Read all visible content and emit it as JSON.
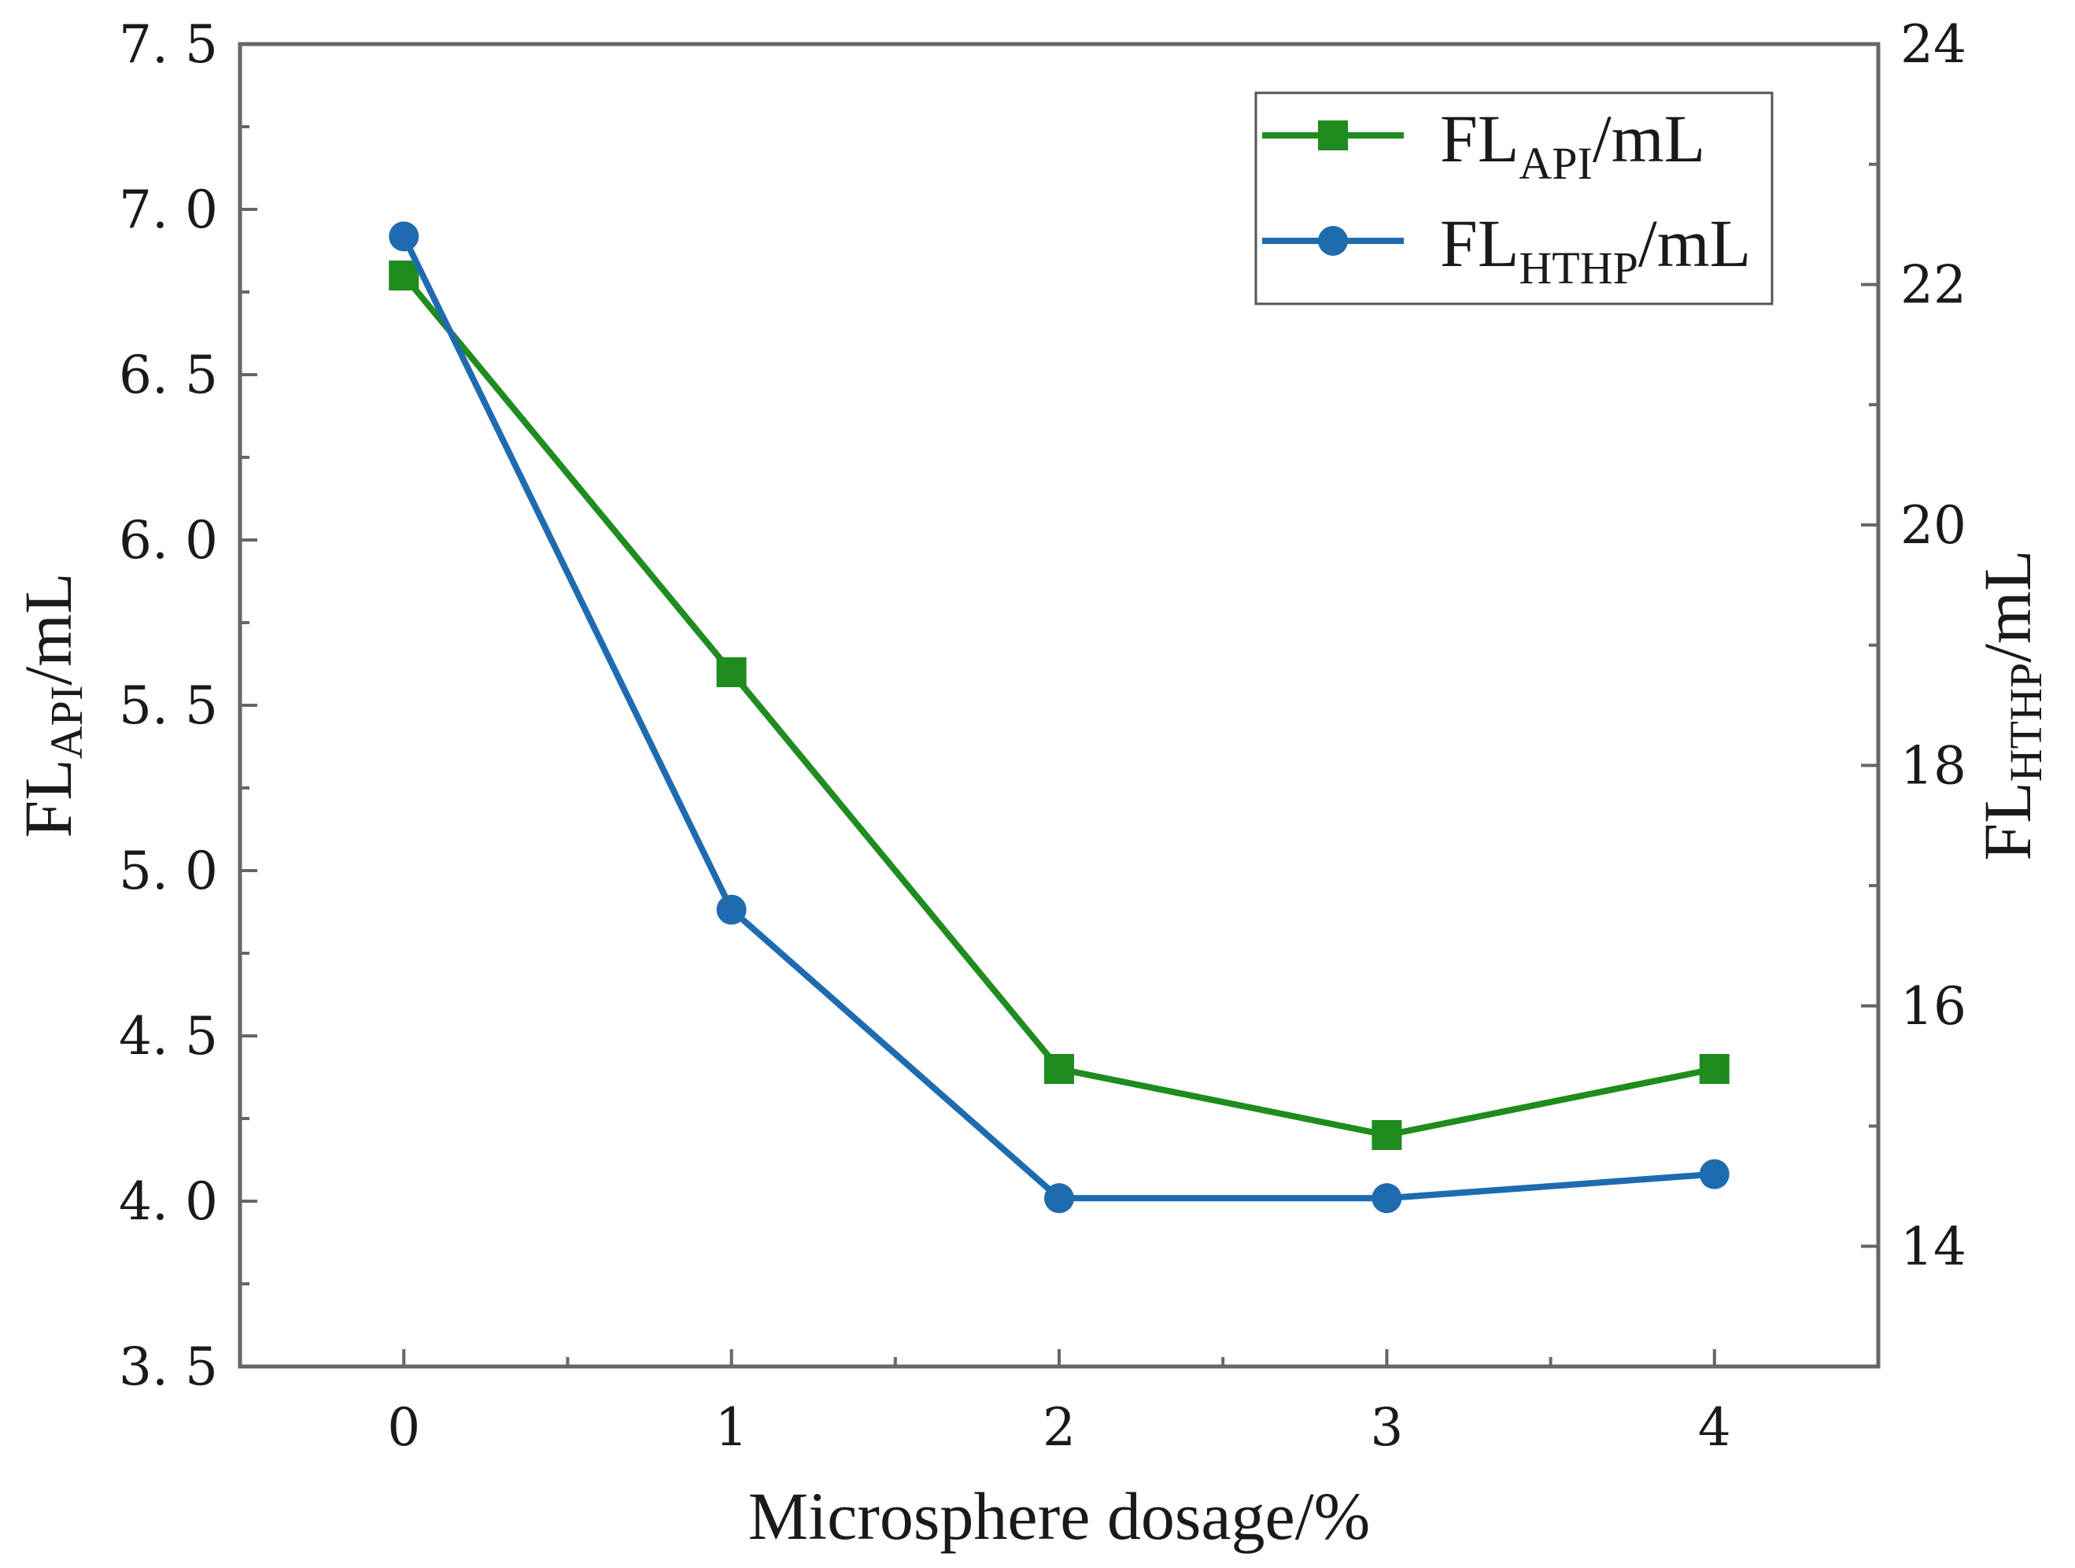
{
  "chart_data": {
    "type": "line",
    "x": [
      0,
      1,
      2,
      3,
      4
    ],
    "xlabel": "Microsphere dosage/%",
    "xlim": [
      -0.5,
      4.5
    ],
    "x_ticks": [
      "0",
      "1",
      "2",
      "3",
      "4"
    ],
    "y_left": {
      "label_main": "FL",
      "label_sub": "API",
      "label_unit": "/mL",
      "ylim": [
        3.5,
        7.5
      ],
      "ticks": [
        "3. 5",
        "4. 0",
        "4. 5",
        "5. 0",
        "5. 5",
        "6. 0",
        "6. 5",
        "7. 0",
        "7. 5"
      ],
      "tick_values": [
        3.5,
        4.0,
        4.5,
        5.0,
        5.5,
        6.0,
        6.5,
        7.0,
        7.5
      ]
    },
    "y_right": {
      "label_main": "FL",
      "label_sub": "HTHP",
      "label_unit": "/mL",
      "ylim": [
        13,
        24
      ],
      "ticks": [
        "14",
        "16",
        "18",
        "20",
        "22",
        "24"
      ],
      "tick_values": [
        14,
        16,
        18,
        20,
        22,
        24
      ]
    },
    "series": [
      {
        "name": "FL_API/mL",
        "legend_main": "FL",
        "legend_sub": "API",
        "legend_unit": "/mL",
        "axis": "left",
        "marker": "square",
        "color": "#1e8c1e",
        "values": [
          6.8,
          5.6,
          4.4,
          4.2,
          4.4
        ]
      },
      {
        "name": "FL_HTHP/mL",
        "legend_main": "FL",
        "legend_sub": "HTHP",
        "legend_unit": "/mL",
        "axis": "right",
        "marker": "circle",
        "color": "#1f6bb0",
        "values": [
          22.4,
          16.8,
          14.4,
          14.4,
          14.6
        ]
      }
    ],
    "legend_position": "top-right",
    "grid": false
  }
}
